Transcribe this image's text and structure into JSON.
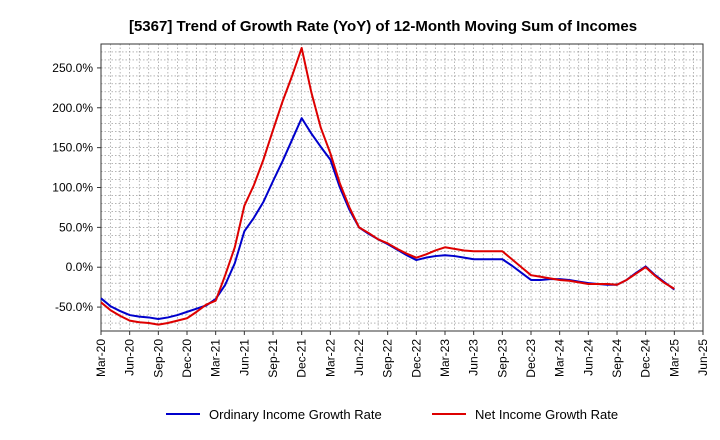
{
  "chart_data": {
    "type": "line",
    "title": "[5367]  Trend of Growth Rate (YoY) of 12-Month Moving Sum of Incomes",
    "xlabel": "",
    "ylabel": "",
    "x_ticks": [
      "Mar-20",
      "Jun-20",
      "Sep-20",
      "Dec-20",
      "Mar-21",
      "Jun-21",
      "Sep-21",
      "Dec-21",
      "Mar-22",
      "Jun-22",
      "Sep-22",
      "Dec-22",
      "Mar-23",
      "Jun-23",
      "Sep-23",
      "Dec-23",
      "Mar-24",
      "Jun-24",
      "Sep-24",
      "Dec-24",
      "Mar-25",
      "Jun-25"
    ],
    "y_ticks": [
      -50,
      0,
      50,
      100,
      150,
      200,
      250
    ],
    "y_tick_labels": [
      "-50.0%",
      "0.0%",
      "50.0%",
      "100.0%",
      "150.0%",
      "200.0%",
      "250.0%"
    ],
    "ylim": [
      -80,
      280
    ],
    "grid": true,
    "legend_position": "bottom",
    "x": [
      "Mar-20",
      "Apr-20",
      "May-20",
      "Jun-20",
      "Jul-20",
      "Aug-20",
      "Sep-20",
      "Oct-20",
      "Nov-20",
      "Dec-20",
      "Jan-21",
      "Feb-21",
      "Mar-21",
      "Apr-21",
      "May-21",
      "Jun-21",
      "Jul-21",
      "Aug-21",
      "Sep-21",
      "Oct-21",
      "Nov-21",
      "Dec-21",
      "Jan-22",
      "Feb-22",
      "Mar-22",
      "Apr-22",
      "May-22",
      "Jun-22",
      "Jul-22",
      "Aug-22",
      "Sep-22",
      "Oct-22",
      "Nov-22",
      "Dec-22",
      "Jan-23",
      "Feb-23",
      "Mar-23",
      "Apr-23",
      "May-23",
      "Jun-23",
      "Jul-23",
      "Aug-23",
      "Sep-23",
      "Oct-23",
      "Nov-23",
      "Dec-23",
      "Jan-24",
      "Feb-24",
      "Mar-24",
      "Apr-24",
      "May-24",
      "Jun-24",
      "Jul-24",
      "Aug-24",
      "Sep-24",
      "Oct-24",
      "Nov-24",
      "Dec-24",
      "Jan-25",
      "Feb-25",
      "Mar-25"
    ],
    "series": [
      {
        "name": "Ordinary Income Growth Rate",
        "color": "#0000cc",
        "values": [
          -39,
          -49,
          -55,
          -60,
          -62,
          -63,
          -65,
          -63,
          -60,
          -56,
          -52,
          -48,
          -40,
          -22,
          5,
          45,
          62,
          82,
          108,
          133,
          160,
          187,
          168,
          151,
          135,
          100,
          72,
          50,
          42,
          35,
          29,
          22,
          15,
          9,
          12,
          14,
          15,
          14,
          12,
          10,
          10,
          10,
          10,
          2,
          -7,
          -16,
          -16,
          -15,
          -15,
          -16,
          -18,
          -20,
          -21,
          -22,
          -22,
          -16,
          -7,
          1,
          -10,
          -19,
          -28
        ]
      },
      {
        "name": "Net Income Growth Rate",
        "color": "#dd0000",
        "values": [
          -44,
          -54,
          -61,
          -67,
          -69,
          -70,
          -72,
          -70,
          -67,
          -64,
          -56,
          -47,
          -42,
          -10,
          25,
          77,
          103,
          135,
          172,
          208,
          240,
          275,
          220,
          175,
          143,
          105,
          75,
          50,
          43,
          35,
          30,
          23,
          17,
          12,
          16,
          21,
          25,
          23,
          21,
          20,
          20,
          20,
          20,
          10,
          0,
          -10,
          -12,
          -14,
          -16,
          -17,
          -19,
          -21,
          -21,
          -21,
          -22,
          -16,
          -8,
          0,
          -11,
          -20,
          -27
        ]
      }
    ]
  }
}
